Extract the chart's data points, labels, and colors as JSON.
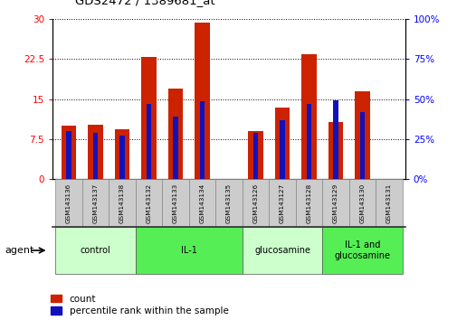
{
  "title": "GDS2472 / 1389681_at",
  "samples": [
    "GSM143136",
    "GSM143137",
    "GSM143138",
    "GSM143132",
    "GSM143133",
    "GSM143134",
    "GSM143135",
    "GSM143126",
    "GSM143127",
    "GSM143128",
    "GSM143129",
    "GSM143130",
    "GSM143131"
  ],
  "count_values": [
    10.0,
    10.2,
    9.3,
    23.0,
    17.0,
    29.3,
    0.0,
    9.0,
    13.5,
    23.5,
    10.8,
    16.5,
    0.0
  ],
  "percentile_values": [
    30.0,
    29.0,
    27.0,
    47.0,
    39.0,
    49.0,
    0.0,
    29.0,
    37.0,
    47.0,
    49.5,
    42.0,
    0.0
  ],
  "groups": [
    {
      "label": "control",
      "start": 0,
      "end": 3,
      "color": "#ccffcc"
    },
    {
      "label": "IL-1",
      "start": 3,
      "end": 7,
      "color": "#55ee55"
    },
    {
      "label": "glucosamine",
      "start": 7,
      "end": 10,
      "color": "#ccffcc"
    },
    {
      "label": "IL-1 and\nglucosamine",
      "start": 10,
      "end": 13,
      "color": "#55ee55"
    }
  ],
  "bar_color_red": "#cc2200",
  "bar_color_blue": "#1111bb",
  "left_ylim": [
    0,
    30
  ],
  "right_ylim": [
    0,
    100
  ],
  "left_yticks": [
    0,
    7.5,
    15,
    22.5,
    30
  ],
  "right_yticks": [
    0,
    25,
    50,
    75,
    100
  ],
  "left_ytick_labels": [
    "0",
    "7.5",
    "15",
    "22.5",
    "30"
  ],
  "right_ytick_labels": [
    "0%",
    "25%",
    "50%",
    "75%",
    "100%"
  ],
  "xlabel_agent": "agent",
  "legend_count": "count",
  "legend_percentile": "percentile rank within the sample",
  "background_color": "#ffffff",
  "sample_bg_color": "#cccccc",
  "red_bar_width": 0.55,
  "blue_bar_width": 0.18
}
